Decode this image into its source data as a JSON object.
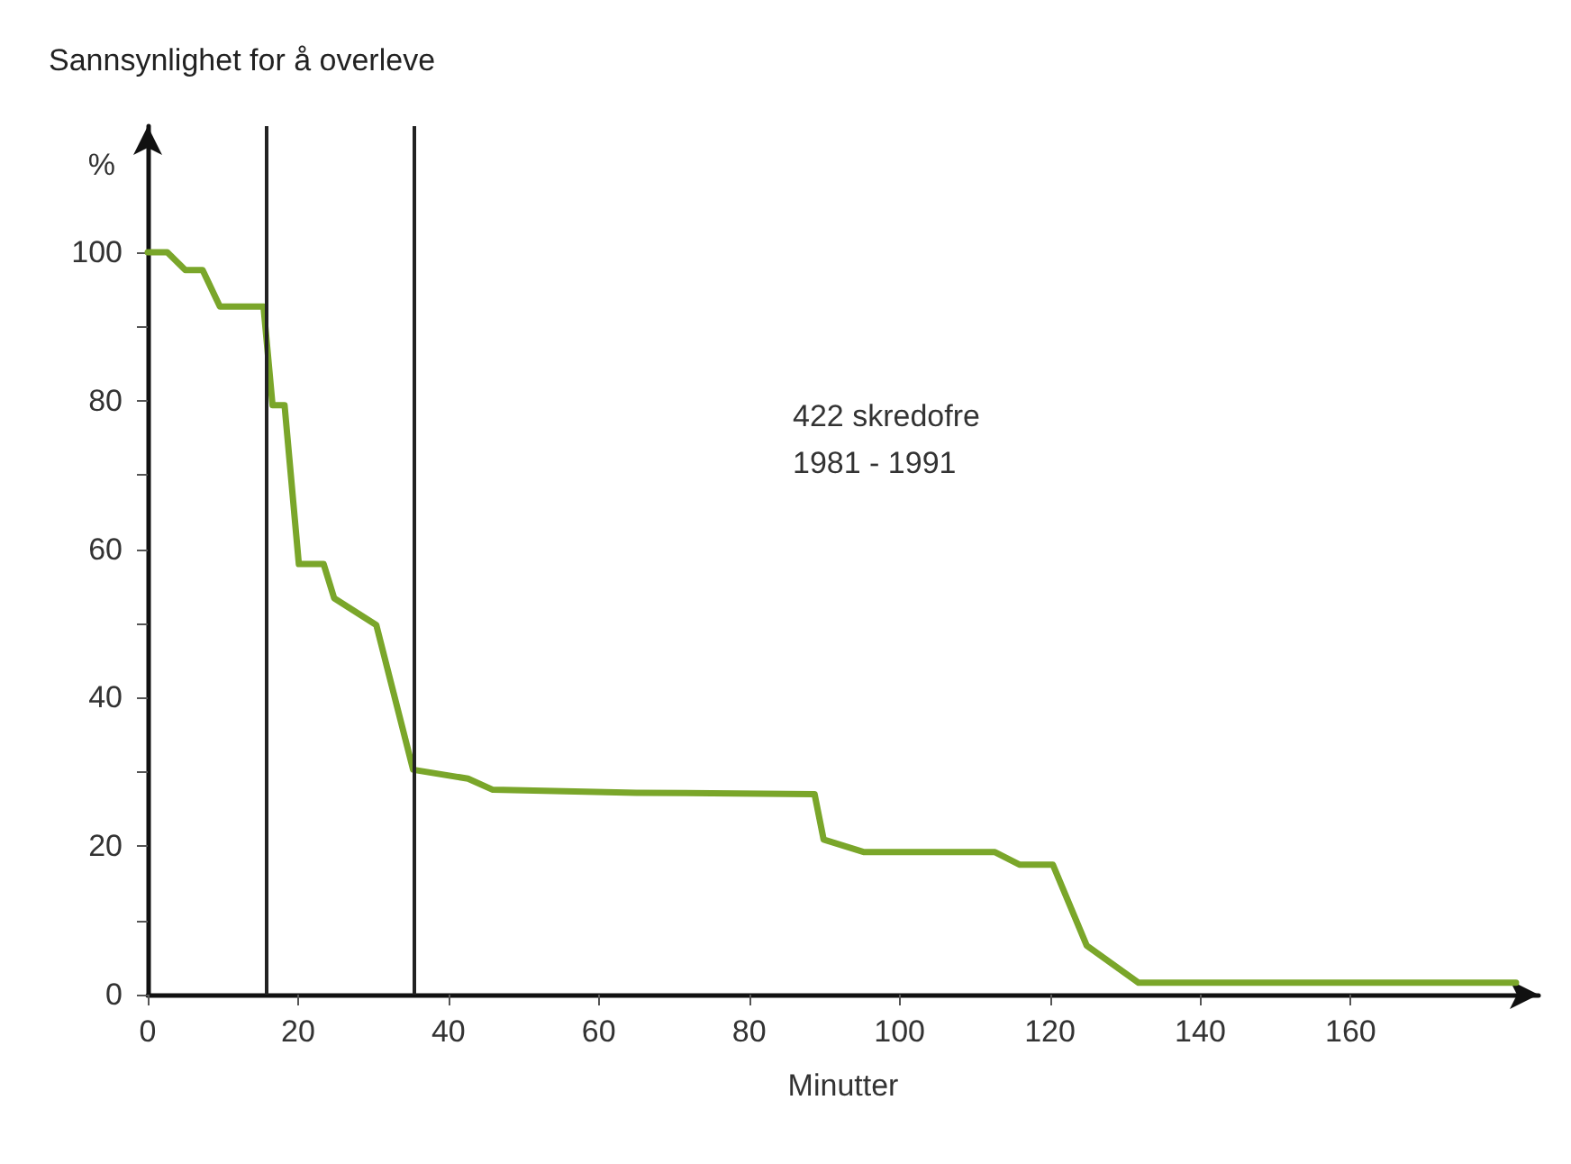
{
  "chart_data": {
    "type": "step",
    "title": "Sannsynlighet for å overleve",
    "ylabel": "%",
    "xlabel": "Minutter",
    "annotations": [
      "422 skredofre\n1981 - 1991"
    ],
    "x": [
      0,
      2.6,
      5,
      7.3,
      9.6,
      15.4,
      16.6,
      18.2,
      20.1,
      23.4,
      24.8,
      30.4,
      35.3,
      42.6,
      45.9,
      65,
      88.7,
      89.9,
      95.3,
      112.7,
      116,
      120.4,
      124.9,
      131.8,
      182
    ],
    "series": [
      {
        "color": "#7aa62a",
        "values": [
          100,
          100,
          97.6,
          97.6,
          92.7,
          92.7,
          79.4,
          79.4,
          58,
          58,
          53.4,
          49.8,
          30.3,
          29.1,
          27.6,
          27.2,
          27,
          20.9,
          19.2,
          19.2,
          17.5,
          17.5,
          6.6,
          1.6,
          1.6
        ]
      }
    ],
    "xlim": [
      0,
      185
    ],
    "xticks": [
      0,
      20,
      40,
      60,
      80,
      100,
      120,
      140,
      160
    ],
    "ylim": [
      0,
      117
    ],
    "yticks": [
      0,
      {
        "value": 10,
        "label": null
      },
      20,
      {
        "value": 30,
        "label": null
      },
      40,
      {
        "value": 50,
        "label": null
      },
      60,
      {
        "value": 70,
        "label": null
      },
      80,
      {
        "value": 90,
        "label": null
      },
      100
    ],
    "ref_lines": [
      {
        "axis": "x",
        "value": 15.7,
        "label": null,
        "color": "#222222"
      },
      {
        "axis": "x",
        "value": 35.3,
        "label": null,
        "color": "#222222"
      }
    ],
    "grid": false,
    "marker": "none",
    "line_style": "solid"
  }
}
